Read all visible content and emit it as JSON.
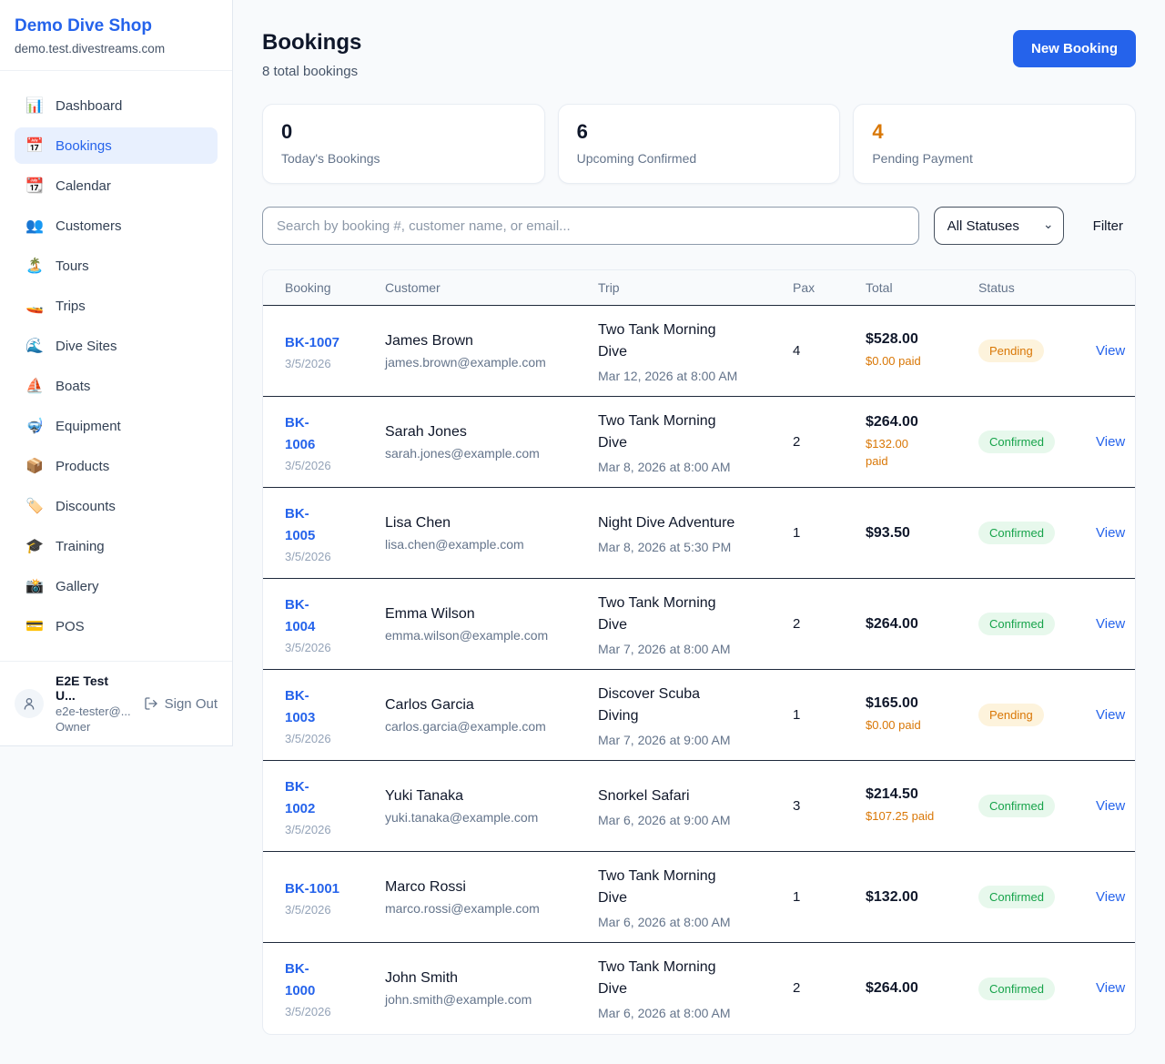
{
  "sidebar": {
    "brand": {
      "name": "Demo Dive Shop",
      "domain": "demo.test.divestreams.com"
    },
    "items": [
      {
        "icon": "📊",
        "icon_name": "bar-chart-icon",
        "label": "Dashboard",
        "active": false
      },
      {
        "icon": "📅",
        "icon_name": "calendar-icon",
        "label": "Bookings",
        "active": true
      },
      {
        "icon": "📆",
        "icon_name": "tear-off-calendar-icon",
        "label": "Calendar",
        "active": false
      },
      {
        "icon": "👥",
        "icon_name": "people-icon",
        "label": "Customers",
        "active": false
      },
      {
        "icon": "🏝️",
        "icon_name": "island-icon",
        "label": "Tours",
        "active": false
      },
      {
        "icon": "🚤",
        "icon_name": "speedboat-icon",
        "label": "Trips",
        "active": false
      },
      {
        "icon": "🌊",
        "icon_name": "wave-icon",
        "label": "Dive Sites",
        "active": false
      },
      {
        "icon": "⛵",
        "icon_name": "sailboat-icon",
        "label": "Boats",
        "active": false
      },
      {
        "icon": "🤿",
        "icon_name": "diving-mask-icon",
        "label": "Equipment",
        "active": false
      },
      {
        "icon": "📦",
        "icon_name": "package-icon",
        "label": "Products",
        "active": false
      },
      {
        "icon": "🏷️",
        "icon_name": "tag-icon",
        "label": "Discounts",
        "active": false
      },
      {
        "icon": "🎓",
        "icon_name": "graduation-cap-icon",
        "label": "Training",
        "active": false
      },
      {
        "icon": "📸",
        "icon_name": "camera-icon",
        "label": "Gallery",
        "active": false
      },
      {
        "icon": "💳",
        "icon_name": "credit-card-icon",
        "label": "POS",
        "active": false
      }
    ],
    "user": {
      "name": "E2E Test U...",
      "email": "e2e-tester@...",
      "role": "Owner",
      "sign_out": "Sign Out"
    }
  },
  "header": {
    "title": "Bookings",
    "subtitle": "8 total bookings",
    "new_booking": "New Booking"
  },
  "stats": [
    {
      "value": "0",
      "label": "Today's Bookings"
    },
    {
      "value": "6",
      "label": "Upcoming Confirmed"
    },
    {
      "value": "4",
      "label": "Pending Payment"
    }
  ],
  "filters": {
    "search_placeholder": "Search by booking #, customer name, or email...",
    "status_selected": "All Statuses",
    "filter_label": "Filter"
  },
  "table": {
    "columns": [
      "Booking",
      "Customer",
      "Trip",
      "Pax",
      "Total",
      "Status"
    ],
    "view_label": "View",
    "rows": [
      {
        "id": "BK-1007",
        "date": "3/5/2026",
        "name": "James Brown",
        "email": "james.brown@example.com",
        "trip": "Two Tank Morning\nDive",
        "trip_datetime": "Mar 12, 2026 at 8:00 AM",
        "pax": "4",
        "total": "$528.00",
        "paid": "$0.00 paid",
        "status": "Pending"
      },
      {
        "id": "BK-\n1006",
        "date": "3/5/2026",
        "name": "Sarah Jones",
        "email": "sarah.jones@example.com",
        "trip": "Two Tank Morning\nDive",
        "trip_datetime": "Mar 8, 2026 at 8:00 AM",
        "pax": "2",
        "total": "$264.00",
        "paid": "$132.00\npaid",
        "status": "Confirmed"
      },
      {
        "id": "BK-\n1005",
        "date": "3/5/2026",
        "name": "Lisa Chen",
        "email": "lisa.chen@example.com",
        "trip": "Night Dive Adventure",
        "trip_datetime": "Mar 8, 2026 at 5:30 PM",
        "pax": "1",
        "total": "$93.50",
        "paid": "",
        "status": "Confirmed"
      },
      {
        "id": "BK-\n1004",
        "date": "3/5/2026",
        "name": "Emma Wilson",
        "email": "emma.wilson@example.com",
        "trip": "Two Tank Morning\nDive",
        "trip_datetime": "Mar 7, 2026 at 8:00 AM",
        "pax": "2",
        "total": "$264.00",
        "paid": "",
        "status": "Confirmed"
      },
      {
        "id": "BK-\n1003",
        "date": "3/5/2026",
        "name": "Carlos Garcia",
        "email": "carlos.garcia@example.com",
        "trip": "Discover Scuba\nDiving",
        "trip_datetime": "Mar 7, 2026 at 9:00 AM",
        "pax": "1",
        "total": "$165.00",
        "paid": "$0.00 paid",
        "status": "Pending"
      },
      {
        "id": "BK-\n1002",
        "date": "3/5/2026",
        "name": "Yuki Tanaka",
        "email": "yuki.tanaka@example.com",
        "trip": "Snorkel Safari",
        "trip_datetime": "Mar 6, 2026 at 9:00 AM",
        "pax": "3",
        "total": "$214.50",
        "paid": "$107.25 paid",
        "status": "Confirmed"
      },
      {
        "id": "BK-1001",
        "date": "3/5/2026",
        "name": "Marco Rossi",
        "email": "marco.rossi@example.com",
        "trip": "Two Tank Morning\nDive",
        "trip_datetime": "Mar 6, 2026 at 8:00 AM",
        "pax": "1",
        "total": "$132.00",
        "paid": "",
        "status": "Confirmed"
      },
      {
        "id": "BK-\n1000",
        "date": "3/5/2026",
        "name": "John Smith",
        "email": "john.smith@example.com",
        "trip": "Two Tank Morning\nDive",
        "trip_datetime": "Mar 6, 2026 at 8:00 AM",
        "pax": "2",
        "total": "$264.00",
        "paid": "",
        "status": "Confirmed"
      }
    ]
  },
  "colors": {
    "accent": "#2563eb",
    "pending": "#d97706",
    "confirmed": "#16a34a"
  }
}
